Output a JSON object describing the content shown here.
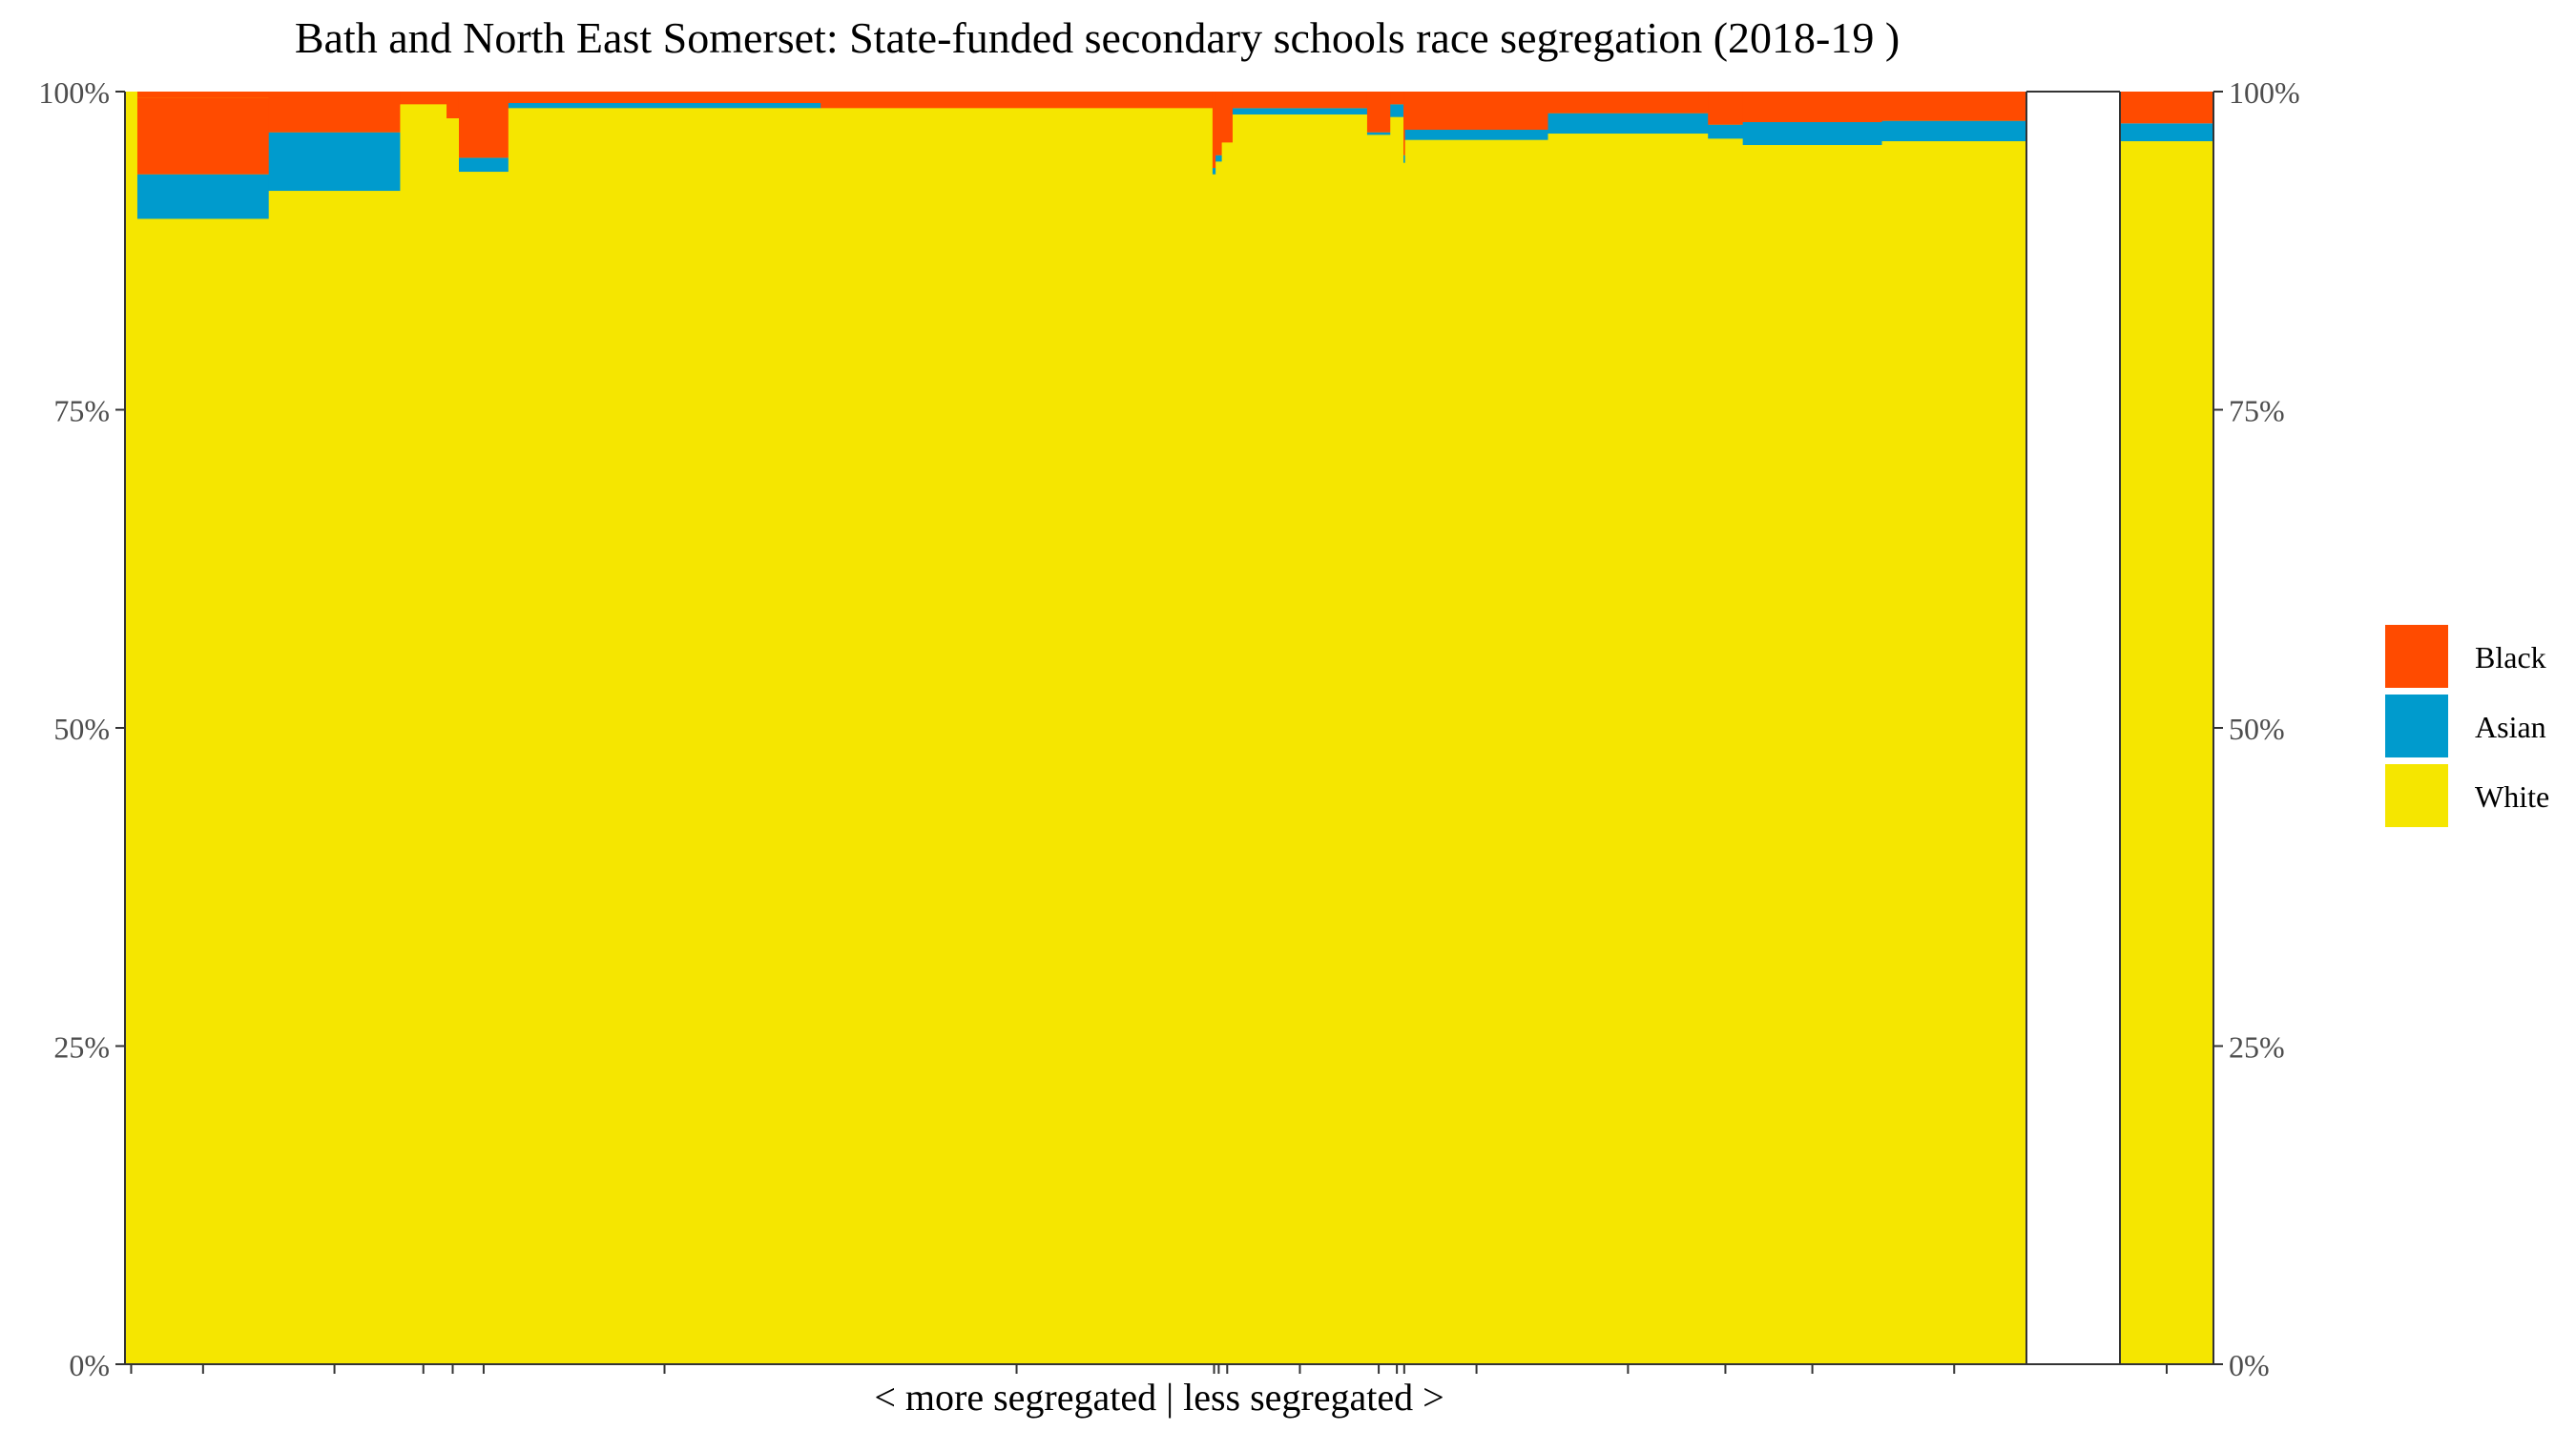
{
  "chart_data": {
    "type": "bar",
    "title": "Bath and North East Somerset: State-funded secondary schools race segregation (2018-19 )",
    "xlabel": "< more segregated | less segregated >",
    "ylabel": "",
    "ylim": [
      0,
      100
    ],
    "y_ticks": [
      "0%",
      "25%",
      "50%",
      "75%",
      "100%"
    ],
    "legend": {
      "position": "right",
      "entries": [
        "Black",
        "Asian",
        "White"
      ]
    },
    "colors": {
      "Black": "#ff4b00",
      "Asian": "#009bcd",
      "White": "#f5e600"
    },
    "grid": false,
    "notes": "Variable-width stacked bars; bar width proportional to school size. Last bar after a gap is the local-authority total.",
    "bars": [
      {
        "width": 0.016,
        "white": 100.0,
        "asian": 0.0,
        "black": 0.0
      },
      {
        "width": 0.17,
        "white": 90.0,
        "asian": 3.5,
        "black": 6.0
      },
      {
        "width": 0.17,
        "white": 92.2,
        "asian": 4.6,
        "black": 3.2
      },
      {
        "width": 0.06,
        "white": 99.0,
        "asian": 0.0,
        "black": 0.0
      },
      {
        "width": 0.016,
        "white": 97.9,
        "asian": 0.0,
        "black": 2.1
      },
      {
        "width": 0.064,
        "white": 93.7,
        "asian": 1.1,
        "black": 5.2
      },
      {
        "width": 0.404,
        "white": 98.7,
        "asian": 0.4,
        "black": 0.9
      },
      {
        "width": 0.507,
        "white": 98.7,
        "asian": 0.0,
        "black": 1.3
      },
      {
        "width": 0.004,
        "white": 93.5,
        "asian": 0.5,
        "black": 6.0
      },
      {
        "width": 0.008,
        "white": 94.5,
        "asian": 0.5,
        "black": 5.0
      },
      {
        "width": 0.014,
        "white": 96.0,
        "asian": 0.0,
        "black": 4.0
      },
      {
        "width": 0.174,
        "white": 98.2,
        "asian": 0.5,
        "black": 1.3
      },
      {
        "width": 0.03,
        "white": 96.6,
        "asian": 0.2,
        "black": 3.2
      },
      {
        "width": 0.017,
        "white": 98.0,
        "asian": 1.0,
        "black": 1.0
      },
      {
        "width": 0.002,
        "white": 94.4,
        "asian": 0.6,
        "black": 5.0
      },
      {
        "width": 0.185,
        "white": 96.2,
        "asian": 0.8,
        "black": 3.0
      },
      {
        "width": 0.207,
        "white": 96.7,
        "asian": 1.6,
        "black": 1.7
      },
      {
        "width": 0.045,
        "white": 96.3,
        "asian": 1.1,
        "black": 2.6
      },
      {
        "width": 0.18,
        "white": 95.8,
        "asian": 1.8,
        "black": 2.4
      },
      {
        "width": 0.187,
        "white": 96.1,
        "asian": 1.6,
        "black": 2.3
      }
    ],
    "total_bar": {
      "white": 96.1,
      "asian": 1.4,
      "black": 2.5
    }
  }
}
